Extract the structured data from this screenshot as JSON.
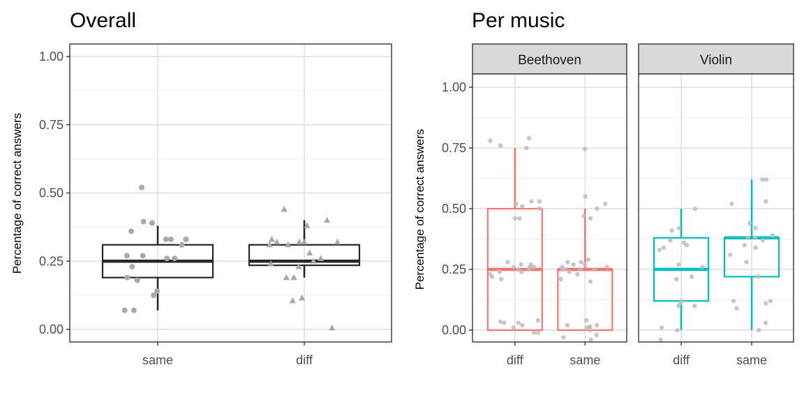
{
  "titles": {
    "left": "Overall",
    "right": "Per music"
  },
  "axis": {
    "ylabel": "Percentage of correct answers",
    "yticks": [
      "0.00",
      "0.25",
      "0.50",
      "0.75",
      "1.00"
    ]
  },
  "chart_data": [
    {
      "type": "box",
      "title": "Overall",
      "ylabel": "Percentage of correct answers",
      "ylim": [
        0,
        1
      ],
      "categories": [
        "same",
        "diff"
      ],
      "boxes": [
        {
          "category": "same",
          "whisker_low": 0.07,
          "q1": 0.19,
          "median": 0.25,
          "q3": 0.31,
          "whisker_high": 0.38,
          "color": "#262626"
        },
        {
          "category": "diff",
          "whisker_low": 0.19,
          "q1": 0.235,
          "median": 0.25,
          "q3": 0.31,
          "whisker_high": 0.4,
          "color": "#262626"
        }
      ],
      "points": {
        "same": {
          "shape": "circle",
          "values": [
            0.52,
            0.39,
            0.395,
            0.33,
            0.33,
            0.33,
            0.33,
            0.36,
            0.31,
            0.27,
            0.27,
            0.26,
            0.26,
            0.23,
            0.19,
            0.18,
            0.14,
            0.125,
            0.07,
            0.07
          ]
        },
        "diff": {
          "shape": "triangle",
          "values": [
            0.44,
            0.4,
            0.38,
            0.33,
            0.32,
            0.31,
            0.32,
            0.32,
            0.31,
            0.32,
            0.28,
            0.26,
            0.25,
            0.24,
            0.23,
            0.19,
            0.19,
            0.115,
            0.105,
            0.005
          ]
        }
      }
    },
    {
      "type": "box",
      "title": "Per music",
      "ylabel": "Percentage of correct answers",
      "ylim": [
        0,
        1
      ],
      "facets": [
        "Beethoven",
        "Violin"
      ],
      "categories": [
        "diff",
        "same"
      ],
      "boxes": [
        {
          "facet": "Beethoven",
          "category": "diff",
          "whisker_low": 0,
          "q1": 0,
          "median": 0.25,
          "q3": 0.5,
          "whisker_high": 0.75,
          "color": "#F8766D"
        },
        {
          "facet": "Beethoven",
          "category": "same",
          "whisker_low": 0,
          "q1": 0,
          "median": 0.25,
          "q3": 0.25,
          "whisker_high": 0.5,
          "color": "#F8766D"
        },
        {
          "facet": "Violin",
          "category": "diff",
          "whisker_low": 0,
          "q1": 0.12,
          "median": 0.25,
          "q3": 0.38,
          "whisker_high": 0.5,
          "color": "#00BFC4"
        },
        {
          "facet": "Violin",
          "category": "same",
          "whisker_low": 0,
          "q1": 0.22,
          "median": 0.38,
          "q3": 0.38,
          "whisker_high": 0.62,
          "color": "#00BFC4"
        }
      ],
      "points": {
        "Beethoven-diff": [
          0.79,
          0.78,
          0.76,
          0.75,
          0.53,
          0.53,
          0.52,
          0.51,
          0.5,
          0.46,
          0.46,
          0.28,
          0.27,
          0.27,
          0.26,
          0.26,
          0.26,
          0.26,
          0.25,
          0.25,
          0.24,
          0.24,
          0.23,
          0.22,
          0.21,
          0.04,
          0.035,
          0.03,
          0.03,
          0.02,
          0.01,
          -0.01,
          -0.01
        ],
        "Beethoven-same": [
          0.745,
          0.55,
          0.52,
          0.5,
          0.46,
          0.47,
          0.29,
          0.28,
          0.28,
          0.27,
          0.27,
          0.26,
          0.26,
          0.25,
          0.25,
          0.25,
          0.25,
          0.24,
          0.23,
          0.21,
          0.2,
          0.04,
          0.02,
          0.02,
          0.015,
          0.01,
          0.01,
          0.0,
          -0.02,
          -0.03,
          -0.04
        ],
        "Violin-diff": [
          0.5,
          0.42,
          0.41,
          0.37,
          0.36,
          0.35,
          0.34,
          0.33,
          0.27,
          0.26,
          0.22,
          0.21,
          0.12,
          0.11,
          0.1,
          0.1,
          0.01,
          0.0,
          -0.04
        ],
        "Violin-same": [
          0.62,
          0.62,
          0.53,
          0.52,
          0.44,
          0.42,
          0.39,
          0.38,
          0.38,
          0.37,
          0.35,
          0.34,
          0.31,
          0.28,
          0.22,
          0.12,
          0.12,
          0.11,
          0.09,
          0.03,
          0.0
        ]
      }
    }
  ]
}
